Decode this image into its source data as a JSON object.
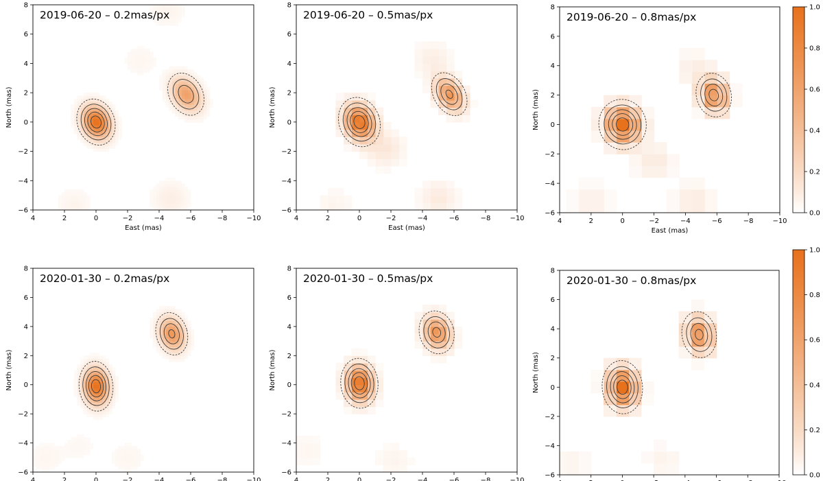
{
  "figure": {
    "description_free": true,
    "colormap": {
      "name": "Oranges",
      "low_color": "#ffffff",
      "high_color": "#e8711c",
      "range": [
        0.0,
        1.0
      ],
      "ticks": [
        "0.0",
        "0.2",
        "0.4",
        "0.6",
        "0.8",
        "1.0"
      ]
    },
    "contour_color": "#3a3a3a"
  },
  "chart_data": [
    {
      "type": "heatmap",
      "title": "2019-06-20 – 0.2mas/px",
      "date": "2019-06-20",
      "pixel_scale_mas": 0.2,
      "xlabel": "East (mas)",
      "ylabel": "North (mas)",
      "xlim": [
        4,
        -10
      ],
      "ylim": [
        -6,
        8
      ],
      "xticks": [
        "4",
        "2",
        "0",
        "−2",
        "−4",
        "−6",
        "−8",
        "−10"
      ],
      "yticks": [
        "−6",
        "−4",
        "−2",
        "0",
        "2",
        "4",
        "6",
        "8"
      ],
      "sources": [
        {
          "name": "primary",
          "east": 0.0,
          "north": 0.0,
          "peak": 1.0,
          "sigma_east": 0.55,
          "sigma_north": 0.75,
          "tilt_deg": -20
        },
        {
          "name": "secondary",
          "east": -5.7,
          "north": 1.9,
          "peak": 0.62,
          "sigma_east": 0.55,
          "sigma_north": 0.8,
          "tilt_deg": -30
        }
      ],
      "background_blobs": [
        {
          "east": -4.7,
          "north": -5.2,
          "peak": 0.08
        },
        {
          "east": 1.4,
          "north": -5.6,
          "peak": 0.05
        },
        {
          "east": -4.5,
          "north": 7.6,
          "peak": 0.05
        },
        {
          "east": -2.8,
          "north": 4.2,
          "peak": 0.04
        }
      ]
    },
    {
      "type": "heatmap",
      "title": "2019-06-20 – 0.5mas/px",
      "date": "2019-06-20",
      "pixel_scale_mas": 0.5,
      "xlabel": "East (mas)",
      "ylabel": "North (mas)",
      "xlim": [
        4,
        -10
      ],
      "ylim": [
        -6,
        8
      ],
      "xticks": [
        "4",
        "2",
        "0",
        "−2",
        "−4",
        "−6",
        "−8",
        "−10"
      ],
      "yticks": [
        "−6",
        "−4",
        "−2",
        "0",
        "2",
        "4",
        "6",
        "8"
      ],
      "sources": [
        {
          "name": "primary",
          "east": 0.0,
          "north": 0.0,
          "peak": 1.0,
          "sigma_east": 0.6,
          "sigma_north": 0.8,
          "tilt_deg": -20
        },
        {
          "name": "secondary",
          "east": -5.7,
          "north": 1.9,
          "peak": 0.7,
          "sigma_east": 0.5,
          "sigma_north": 0.8,
          "tilt_deg": -30
        }
      ],
      "background_blobs": [
        {
          "east": -5.0,
          "north": -5.2,
          "peak": 0.1
        },
        {
          "east": -1.6,
          "north": -1.8,
          "peak": 0.12
        },
        {
          "east": -4.6,
          "north": 4.3,
          "peak": 0.08
        },
        {
          "east": 1.6,
          "north": -5.7,
          "peak": 0.05
        }
      ]
    },
    {
      "type": "heatmap",
      "title": "2019-06-20 – 0.8mas/px",
      "date": "2019-06-20",
      "pixel_scale_mas": 0.8,
      "xlabel": "East (mas)",
      "ylabel": "North (mas)",
      "xlim": [
        4,
        -10
      ],
      "ylim": [
        -6,
        8
      ],
      "xticks": [
        "4",
        "2",
        "0",
        "−2",
        "−4",
        "−6",
        "−8",
        "−10"
      ],
      "yticks": [
        "−6",
        "−4",
        "−2",
        "0",
        "2",
        "4",
        "6",
        "8"
      ],
      "sources": [
        {
          "name": "primary",
          "east": 0.0,
          "north": 0.0,
          "peak": 1.0,
          "sigma_east": 0.7,
          "sigma_north": 0.8,
          "tilt_deg": -15
        },
        {
          "name": "secondary",
          "east": -5.8,
          "north": 2.0,
          "peak": 0.75,
          "sigma_east": 0.55,
          "sigma_north": 0.75,
          "tilt_deg": -15
        }
      ],
      "background_blobs": [
        {
          "east": -2.0,
          "north": -2.5,
          "peak": 0.1
        },
        {
          "east": -4.5,
          "north": -5.2,
          "peak": 0.1
        },
        {
          "east": 2.0,
          "north": -5.2,
          "peak": 0.07
        },
        {
          "east": -4.6,
          "north": 3.8,
          "peak": 0.08
        }
      ]
    },
    {
      "type": "heatmap",
      "title": "2020-01-30 – 0.2mas/px",
      "date": "2020-01-30",
      "pixel_scale_mas": 0.2,
      "xlabel": "East (mas)",
      "ylabel": "North (mas)",
      "xlim": [
        4,
        -10
      ],
      "ylim": [
        -6,
        8
      ],
      "xticks": [
        "4",
        "2",
        "0",
        "−2",
        "−4",
        "−6",
        "−8",
        "−10"
      ],
      "yticks": [
        "−6",
        "−4",
        "−2",
        "0",
        "2",
        "4",
        "6",
        "8"
      ],
      "sources": [
        {
          "name": "primary",
          "east": 0.0,
          "north": -0.1,
          "peak": 1.0,
          "sigma_east": 0.5,
          "sigma_north": 0.8,
          "tilt_deg": -5
        },
        {
          "name": "secondary",
          "east": -4.8,
          "north": 3.5,
          "peak": 0.7,
          "sigma_east": 0.5,
          "sigma_north": 0.75,
          "tilt_deg": -15
        }
      ],
      "background_blobs": [
        {
          "east": 3.2,
          "north": -5.0,
          "peak": 0.04
        },
        {
          "east": -2.0,
          "north": -5.0,
          "peak": 0.04
        },
        {
          "east": 1.0,
          "north": -4.2,
          "peak": 0.03
        }
      ]
    },
    {
      "type": "heatmap",
      "title": "2020-01-30 – 0.5mas/px",
      "date": "2020-01-30",
      "pixel_scale_mas": 0.5,
      "xlabel": "East (mas)",
      "ylabel": "North (mas)",
      "xlim": [
        4,
        -10
      ],
      "ylim": [
        -6,
        8
      ],
      "xticks": [
        "4",
        "2",
        "0",
        "−2",
        "−4",
        "−6",
        "−8",
        "−10"
      ],
      "yticks": [
        "−6",
        "−4",
        "−2",
        "0",
        "2",
        "4",
        "6",
        "8"
      ],
      "sources": [
        {
          "name": "primary",
          "east": 0.0,
          "north": 0.1,
          "peak": 1.0,
          "sigma_east": 0.55,
          "sigma_north": 0.8,
          "tilt_deg": -5
        },
        {
          "name": "secondary",
          "east": -4.9,
          "north": 3.6,
          "peak": 0.72,
          "sigma_east": 0.55,
          "sigma_north": 0.75,
          "tilt_deg": -15
        }
      ],
      "background_blobs": [
        {
          "east": -2.2,
          "north": -5.2,
          "peak": 0.05
        },
        {
          "east": 3.3,
          "north": -4.5,
          "peak": 0.04
        }
      ]
    },
    {
      "type": "heatmap",
      "title": "2020-01-30 – 0.8mas/px",
      "date": "2020-01-30",
      "pixel_scale_mas": 0.8,
      "xlabel": "East (mas)",
      "ylabel": "North (mas)",
      "xlim": [
        4,
        -10
      ],
      "ylim": [
        -6,
        8
      ],
      "xticks": [
        "4",
        "2",
        "0",
        "−2",
        "−4",
        "−6",
        "−8",
        "−10"
      ],
      "yticks": [
        "−6",
        "−4",
        "−2",
        "0",
        "2",
        "4",
        "6",
        "8"
      ],
      "sources": [
        {
          "name": "primary",
          "east": 0.0,
          "north": 0.0,
          "peak": 1.0,
          "sigma_east": 0.6,
          "sigma_north": 0.85,
          "tilt_deg": -5
        },
        {
          "name": "secondary",
          "east": -4.9,
          "north": 3.6,
          "peak": 0.72,
          "sigma_east": 0.55,
          "sigma_north": 0.8,
          "tilt_deg": -10
        }
      ],
      "background_blobs": [
        {
          "east": -2.6,
          "north": -5.0,
          "peak": 0.05
        },
        {
          "east": 3.3,
          "north": -5.2,
          "peak": 0.05
        }
      ]
    }
  ]
}
